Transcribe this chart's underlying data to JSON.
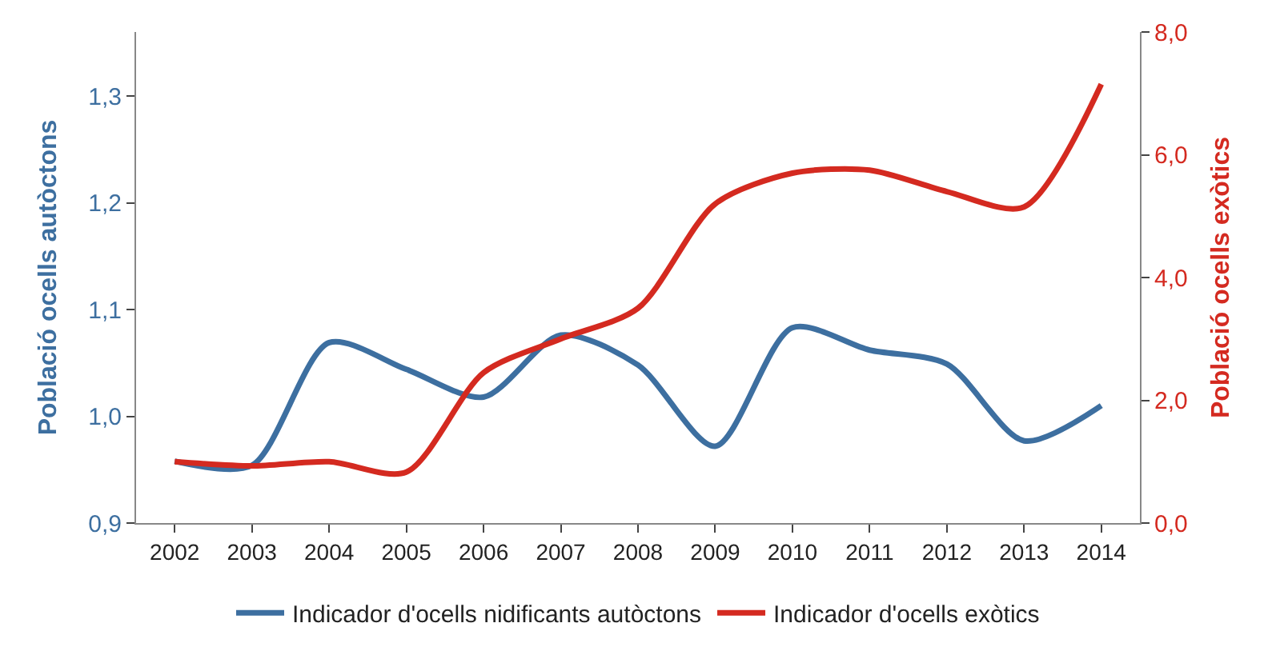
{
  "chart_data": {
    "type": "line",
    "categories": [
      "2002",
      "2003",
      "2004",
      "2005",
      "2006",
      "2007",
      "2008",
      "2009",
      "2010",
      "2011",
      "2012",
      "2013",
      "2014"
    ],
    "ylabel": "Població ocells autòctons",
    "y2label": "Població ocells exòtics",
    "ylim": [
      0.9,
      1.36
    ],
    "yticks": [
      {
        "value": 0.9,
        "label": "0,9"
      },
      {
        "value": 1.0,
        "label": "1,0"
      },
      {
        "value": 1.1,
        "label": "1,1"
      },
      {
        "value": 1.2,
        "label": "1,2"
      },
      {
        "value": 1.3,
        "label": "1,3"
      }
    ],
    "y2lim": [
      0,
      8
    ],
    "y2ticks": [
      {
        "value": 0,
        "label": "0,0"
      },
      {
        "value": 2,
        "label": "2,0"
      },
      {
        "value": 4,
        "label": "4,0"
      },
      {
        "value": 6,
        "label": "6,0"
      },
      {
        "value": 8,
        "label": "8,0"
      }
    ],
    "series": [
      {
        "name": "Indicador d'ocells nidificants autòctons",
        "color": "#3d6fa0",
        "values": [
          0.958,
          0.954,
          1.069,
          1.044,
          1.018,
          1.076,
          1.048,
          0.972,
          1.083,
          1.062,
          1.049,
          0.977,
          1.01
        ]
      },
      {
        "name": "Indicador d'ocells exòtics",
        "color": "#d42a20",
        "axis": "y2",
        "values": [
          1.0,
          0.93,
          1.0,
          0.83,
          2.45,
          3.0,
          3.5,
          5.2,
          5.7,
          5.75,
          5.4,
          5.15,
          7.15
        ]
      }
    ],
    "legend": "bottom",
    "marker": "none",
    "line_style": "solid"
  }
}
